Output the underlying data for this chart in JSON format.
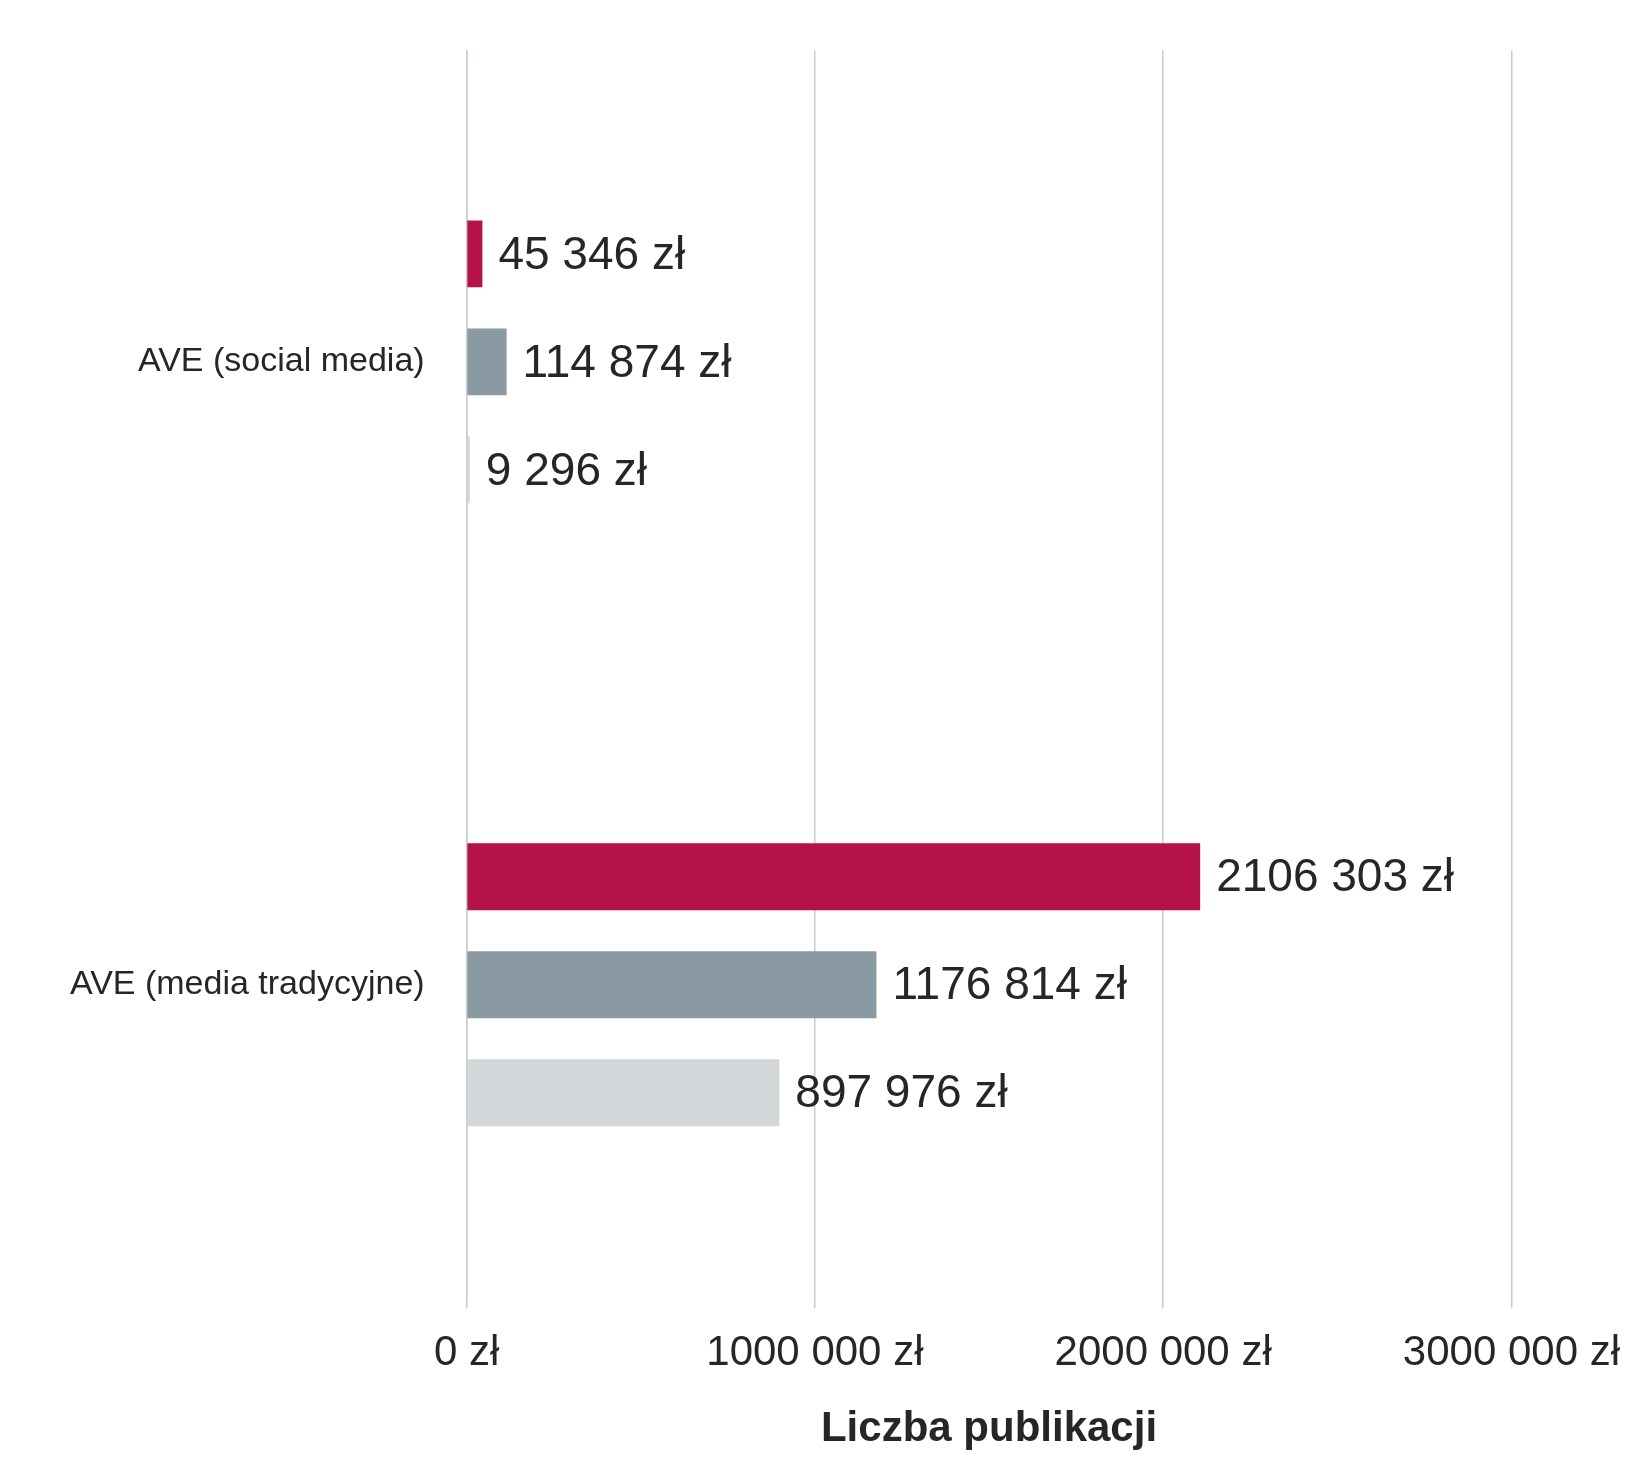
{
  "chart_data": {
    "type": "bar",
    "orientation": "horizontal",
    "xlabel": "Liczba publikacji",
    "categories": [
      "AVE (social media)",
      "AVE (media tradycyjne)"
    ],
    "series": [
      {
        "color": "#b5124a",
        "values": [
          45346,
          2106303
        ],
        "value_labels": [
          "45 346 zł",
          "2106 303 zł"
        ]
      },
      {
        "color": "#8a9aa3",
        "values": [
          114874,
          1176814
        ],
        "value_labels": [
          "114 874 zł",
          "1176 814 zł"
        ]
      },
      {
        "color": "#d3d7da",
        "values": [
          9296,
          897976
        ],
        "value_labels": [
          "9 296 zł",
          "897 976 zł"
        ]
      }
    ],
    "xlim": [
      0,
      3000000
    ],
    "xticks": [
      {
        "value": 0,
        "label": "0 zł"
      },
      {
        "value": 1000000,
        "label": "1000 000 zł"
      },
      {
        "value": 2000000,
        "label": "2000 000 zł"
      },
      {
        "value": 3000000,
        "label": "3000 000 zł"
      }
    ],
    "grid": "x",
    "legend": false
  }
}
